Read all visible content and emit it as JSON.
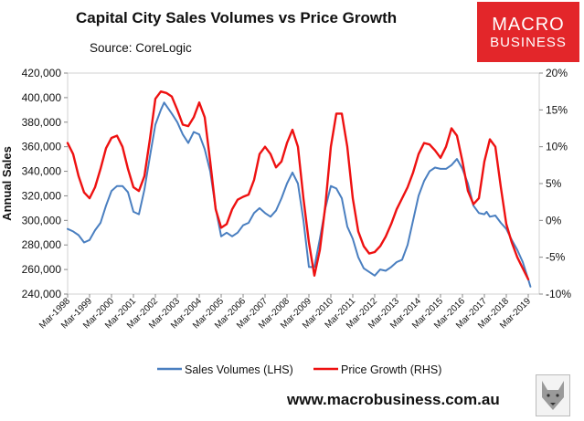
{
  "header": {
    "title": "Capital City Sales Volumes vs Price Growth",
    "source": "Source: CoreLogic"
  },
  "branding": {
    "logo_line1": "MACRO",
    "logo_line2": "BUSINESS",
    "website": "www.macrobusiness.com.au",
    "logo_color": "#e3262a"
  },
  "chart_data": {
    "type": "line",
    "title": "Capital City Sales Volumes vs Price Growth",
    "ylabel_left": "Annual Sales",
    "ylabel_right": "",
    "xlabel": "",
    "grid": false,
    "legend_position": "bottom",
    "y_left": {
      "range": [
        240000,
        420000
      ],
      "ticks": [
        240000,
        260000,
        280000,
        300000,
        320000,
        340000,
        360000,
        380000,
        400000,
        420000
      ],
      "tick_labels": [
        "240,000",
        "260,000",
        "280,000",
        "300,000",
        "320,000",
        "340,000",
        "360,000",
        "380,000",
        "400,000",
        "420,000"
      ]
    },
    "y_right": {
      "range": [
        -10,
        20
      ],
      "ticks": [
        -10,
        -5,
        0,
        5,
        10,
        15,
        20
      ],
      "tick_labels": [
        "-10%",
        "-5%",
        "0%",
        "5%",
        "10%",
        "15%",
        "20%"
      ]
    },
    "x_range": [
      1998.0,
      2019.5
    ],
    "x_ticks": [
      1998,
      1999,
      2000,
      2001,
      2002,
      2003,
      2004,
      2005,
      2006,
      2007,
      2008,
      2009,
      2010,
      2011,
      2012,
      2013,
      2014,
      2015,
      2016,
      2017,
      2018,
      2019
    ],
    "x_tick_labels": [
      "Mar-1998",
      "Mar-1999",
      "Mar-2000",
      "Mar-2001",
      "Mar-2002",
      "Mar-2003",
      "Mar-2004",
      "Mar-2005",
      "Mar-2006",
      "Mar-2007",
      "Mar-2008",
      "Mar-2009",
      "Mar-2010",
      "Mar-2011",
      "Mar-2012",
      "Mar-2013",
      "Mar-2014",
      "Mar-2015",
      "Mar-2016",
      "Mar-2017",
      "Mar-2018",
      "Mar-2019"
    ],
    "series": [
      {
        "name": "Sales Volumes (LHS)",
        "axis": "left",
        "color": "#4a7fc0",
        "points": [
          [
            1998.0,
            293000
          ],
          [
            1998.25,
            291000
          ],
          [
            1998.5,
            288000
          ],
          [
            1998.75,
            282000
          ],
          [
            1999.0,
            284000
          ],
          [
            1999.25,
            292000
          ],
          [
            1999.5,
            298000
          ],
          [
            1999.75,
            312000
          ],
          [
            2000.0,
            324000
          ],
          [
            2000.25,
            328000
          ],
          [
            2000.5,
            328000
          ],
          [
            2000.75,
            323000
          ],
          [
            2001.0,
            307000
          ],
          [
            2001.25,
            305000
          ],
          [
            2001.5,
            325000
          ],
          [
            2001.75,
            352000
          ],
          [
            2002.0,
            378000
          ],
          [
            2002.25,
            390000
          ],
          [
            2002.4,
            396000
          ],
          [
            2002.75,
            387000
          ],
          [
            2003.0,
            380000
          ],
          [
            2003.25,
            370000
          ],
          [
            2003.5,
            363000
          ],
          [
            2003.75,
            372000
          ],
          [
            2004.0,
            370000
          ],
          [
            2004.25,
            358000
          ],
          [
            2004.5,
            340000
          ],
          [
            2004.75,
            310000
          ],
          [
            2005.0,
            287000
          ],
          [
            2005.25,
            290000
          ],
          [
            2005.5,
            287000
          ],
          [
            2005.75,
            290000
          ],
          [
            2006.0,
            296000
          ],
          [
            2006.25,
            298000
          ],
          [
            2006.5,
            306000
          ],
          [
            2006.75,
            310000
          ],
          [
            2007.0,
            306000
          ],
          [
            2007.25,
            303000
          ],
          [
            2007.5,
            308000
          ],
          [
            2007.75,
            318000
          ],
          [
            2008.0,
            330000
          ],
          [
            2008.25,
            339000
          ],
          [
            2008.5,
            330000
          ],
          [
            2008.75,
            300000
          ],
          [
            2009.0,
            262000
          ],
          [
            2009.25,
            262000
          ],
          [
            2009.5,
            285000
          ],
          [
            2009.75,
            310000
          ],
          [
            2010.0,
            328000
          ],
          [
            2010.25,
            326000
          ],
          [
            2010.5,
            318000
          ],
          [
            2010.75,
            295000
          ],
          [
            2011.0,
            285000
          ],
          [
            2011.25,
            270000
          ],
          [
            2011.5,
            261000
          ],
          [
            2011.75,
            258000
          ],
          [
            2012.0,
            255000
          ],
          [
            2012.25,
            260000
          ],
          [
            2012.5,
            259000
          ],
          [
            2012.75,
            262000
          ],
          [
            2013.0,
            266000
          ],
          [
            2013.25,
            268000
          ],
          [
            2013.5,
            280000
          ],
          [
            2013.75,
            300000
          ],
          [
            2014.0,
            320000
          ],
          [
            2014.25,
            332000
          ],
          [
            2014.5,
            340000
          ],
          [
            2014.75,
            343000
          ],
          [
            2015.0,
            342000
          ],
          [
            2015.25,
            342000
          ],
          [
            2015.5,
            345000
          ],
          [
            2015.75,
            350000
          ],
          [
            2016.0,
            342000
          ],
          [
            2016.25,
            330000
          ],
          [
            2016.5,
            312000
          ],
          [
            2016.75,
            306000
          ],
          [
            2017.0,
            305000
          ],
          [
            2017.1,
            307000
          ],
          [
            2017.25,
            303000
          ],
          [
            2017.5,
            304000
          ],
          [
            2017.75,
            298000
          ],
          [
            2018.0,
            293000
          ],
          [
            2018.25,
            284000
          ],
          [
            2018.5,
            276000
          ],
          [
            2018.75,
            266000
          ],
          [
            2019.0,
            252000
          ],
          [
            2019.1,
            246000
          ]
        ]
      },
      {
        "name": "Price Growth (RHS)",
        "axis": "right",
        "color": "#ee1111",
        "points": [
          [
            1998.0,
            10.5
          ],
          [
            1998.25,
            9.0
          ],
          [
            1998.5,
            6.0
          ],
          [
            1998.75,
            3.8
          ],
          [
            1999.0,
            3.0
          ],
          [
            1999.25,
            4.5
          ],
          [
            1999.5,
            7.0
          ],
          [
            1999.75,
            9.8
          ],
          [
            2000.0,
            11.2
          ],
          [
            2000.25,
            11.5
          ],
          [
            2000.5,
            10.0
          ],
          [
            2000.75,
            7.0
          ],
          [
            2001.0,
            4.5
          ],
          [
            2001.25,
            4.0
          ],
          [
            2001.5,
            6.0
          ],
          [
            2001.75,
            11.0
          ],
          [
            2002.0,
            16.5
          ],
          [
            2002.25,
            17.5
          ],
          [
            2002.5,
            17.3
          ],
          [
            2002.75,
            16.8
          ],
          [
            2003.0,
            15.0
          ],
          [
            2003.25,
            13.0
          ],
          [
            2003.5,
            12.8
          ],
          [
            2003.75,
            14.0
          ],
          [
            2004.0,
            16.0
          ],
          [
            2004.25,
            14.0
          ],
          [
            2004.5,
            8.0
          ],
          [
            2004.75,
            1.5
          ],
          [
            2005.0,
            -1.0
          ],
          [
            2005.25,
            -0.5
          ],
          [
            2005.5,
            1.5
          ],
          [
            2005.75,
            2.8
          ],
          [
            2006.0,
            3.2
          ],
          [
            2006.25,
            3.5
          ],
          [
            2006.5,
            5.5
          ],
          [
            2006.75,
            9.0
          ],
          [
            2007.0,
            10.0
          ],
          [
            2007.25,
            9.0
          ],
          [
            2007.5,
            7.2
          ],
          [
            2007.75,
            8.0
          ],
          [
            2008.0,
            10.5
          ],
          [
            2008.25,
            12.3
          ],
          [
            2008.5,
            10.0
          ],
          [
            2008.75,
            3.0
          ],
          [
            2009.0,
            -3.0
          ],
          [
            2009.25,
            -7.5
          ],
          [
            2009.5,
            -4.0
          ],
          [
            2009.75,
            2.0
          ],
          [
            2010.0,
            10.0
          ],
          [
            2010.25,
            14.5
          ],
          [
            2010.5,
            14.5
          ],
          [
            2010.75,
            10.0
          ],
          [
            2011.0,
            3.0
          ],
          [
            2011.25,
            -1.5
          ],
          [
            2011.5,
            -3.5
          ],
          [
            2011.75,
            -4.5
          ],
          [
            2012.0,
            -4.3
          ],
          [
            2012.25,
            -3.5
          ],
          [
            2012.5,
            -2.2
          ],
          [
            2012.75,
            -0.5
          ],
          [
            2013.0,
            1.5
          ],
          [
            2013.25,
            3.0
          ],
          [
            2013.5,
            4.5
          ],
          [
            2013.75,
            6.5
          ],
          [
            2014.0,
            9.0
          ],
          [
            2014.25,
            10.5
          ],
          [
            2014.5,
            10.3
          ],
          [
            2014.75,
            9.5
          ],
          [
            2015.0,
            8.5
          ],
          [
            2015.25,
            10.0
          ],
          [
            2015.5,
            12.5
          ],
          [
            2015.75,
            11.5
          ],
          [
            2016.0,
            8.0
          ],
          [
            2016.25,
            4.0
          ],
          [
            2016.5,
            2.2
          ],
          [
            2016.75,
            3.0
          ],
          [
            2017.0,
            8.0
          ],
          [
            2017.25,
            11.0
          ],
          [
            2017.5,
            10.0
          ],
          [
            2017.75,
            4.5
          ],
          [
            2018.0,
            -0.5
          ],
          [
            2018.25,
            -3.0
          ],
          [
            2018.5,
            -5.0
          ],
          [
            2018.75,
            -6.5
          ],
          [
            2019.0,
            -8.0
          ]
        ]
      }
    ]
  }
}
